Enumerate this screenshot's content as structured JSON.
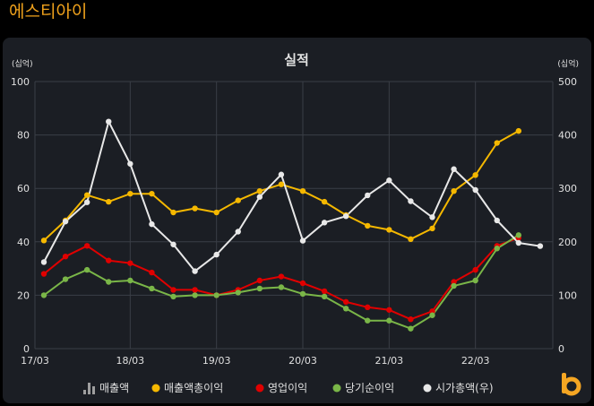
{
  "company_name": "에스티아이",
  "brand_icon": "b-logo-icon",
  "colors": {
    "background": "#000000",
    "panel": "#1b1e24",
    "grid": "#3a3e46",
    "axis_text": "#e0e0e0",
    "title": "#f0a21c"
  },
  "chart_data": {
    "type": "line",
    "title": "실적",
    "left_unit": "(십억)",
    "right_unit": "(십억)",
    "ylim_left": [
      0,
      100
    ],
    "ylim_right": [
      0,
      500
    ],
    "left_ticks": [
      "0",
      "20",
      "40",
      "60",
      "80",
      "100"
    ],
    "right_ticks": [
      "0",
      "100",
      "200",
      "300",
      "400",
      "500"
    ],
    "x_tick_labels": [
      "17/03",
      "18/03",
      "19/03",
      "20/03",
      "21/03",
      "22/03"
    ],
    "x": [
      "17/03",
      "17/06",
      "17/09",
      "17/12",
      "18/03",
      "18/06",
      "18/09",
      "18/12",
      "19/03",
      "19/06",
      "19/09",
      "19/12",
      "20/03",
      "20/06",
      "20/09",
      "20/12",
      "21/03",
      "21/06",
      "21/09",
      "21/12",
      "22/03",
      "22/06",
      "22/09",
      "22/12"
    ],
    "grid": true,
    "legend_position": "bottom",
    "legend": [
      {
        "label": "매출액",
        "color": "#9e9e9e",
        "icon": "bar-chart-icon"
      },
      {
        "label": "매출액총이익",
        "color": "#f5b800",
        "icon": "dot-icon"
      },
      {
        "label": "영업이익",
        "color": "#e00000",
        "icon": "dot-icon"
      },
      {
        "label": "당기순이익",
        "color": "#7ab648",
        "icon": "dot-icon"
      },
      {
        "label": "시가총액(우)",
        "color": "#e8e8e8",
        "icon": "dot-icon"
      }
    ],
    "series": [
      {
        "name": "매출액총이익",
        "axis": "left",
        "color": "#f5b800",
        "values": [
          40.5,
          48,
          57.5,
          55,
          58,
          58,
          51,
          52.5,
          51,
          55.5,
          59,
          61.5,
          59,
          55,
          50,
          46,
          44.5,
          41,
          45,
          59,
          65,
          77,
          81.5,
          null
        ]
      },
      {
        "name": "영업이익",
        "axis": "left",
        "color": "#e00000",
        "values": [
          28,
          34.5,
          38.5,
          33,
          32,
          28.5,
          22,
          22,
          20,
          22,
          25.5,
          27,
          24.5,
          21.5,
          17.5,
          15.5,
          14.5,
          11,
          14,
          25,
          29.5,
          38.5,
          41.5,
          null
        ]
      },
      {
        "name": "당기순이익",
        "axis": "left",
        "color": "#7ab648",
        "values": [
          20,
          26,
          29.5,
          25,
          25.5,
          22.5,
          19.5,
          20,
          20,
          21,
          22.5,
          23,
          20.5,
          19.5,
          15,
          10.5,
          10.5,
          7.5,
          12.5,
          23.5,
          25.5,
          37.5,
          42.5,
          null
        ]
      },
      {
        "name": "시가총액(우)",
        "axis": "right",
        "color": "#e8e8e8",
        "values": [
          162,
          238,
          274,
          425,
          346,
          233,
          195,
          145,
          176,
          219,
          284,
          326,
          202,
          236,
          248,
          287,
          315,
          276,
          246,
          336,
          297,
          240,
          198,
          192
        ]
      }
    ]
  }
}
